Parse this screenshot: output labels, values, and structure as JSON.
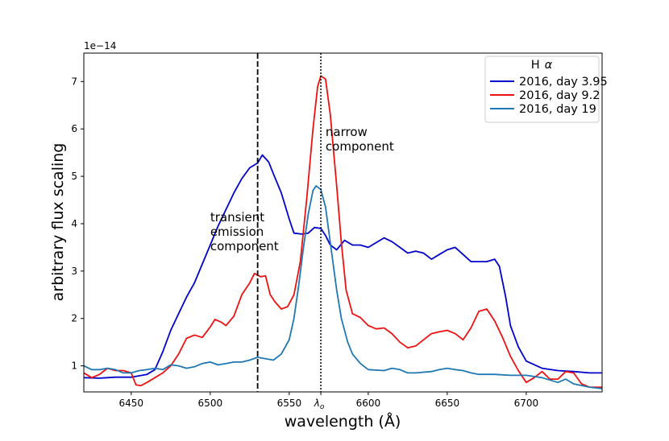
{
  "chart_data": {
    "type": "line",
    "title": "",
    "xlabel": "wavelength (Å)",
    "ylabel": "arbitrary flux scaling",
    "offset_text": "1e−14",
    "xlim": [
      6420,
      6748
    ],
    "ylim": [
      0.45,
      7.6
    ],
    "xticks": [
      6450,
      6500,
      6550,
      6600,
      6650,
      6700
    ],
    "extra_xtick": {
      "x": 6570,
      "label": "λ",
      "sub": "o"
    },
    "yticks": [
      1,
      2,
      3,
      4,
      5,
      6,
      7
    ],
    "legend": {
      "title": "Hα",
      "title_main": "H",
      "title_greek": "α",
      "placement": "top-right"
    },
    "vlines": [
      {
        "x": 6530,
        "style": "dashed",
        "name": "transient-line"
      },
      {
        "x": 6570,
        "style": "dotted",
        "name": "rest-wavelength-line"
      }
    ],
    "annotations": [
      {
        "lines": [
          "transient",
          "emission",
          "component"
        ],
        "x": 6500,
        "y": 4.05
      },
      {
        "lines": [
          "narrow",
          "component"
        ],
        "x": 6573,
        "y": 5.85
      }
    ],
    "series": [
      {
        "name": "2016, day 3.95",
        "color": "#0000cc",
        "points": [
          [
            6420,
            0.75
          ],
          [
            6430,
            0.74
          ],
          [
            6440,
            0.76
          ],
          [
            6450,
            0.76
          ],
          [
            6460,
            0.82
          ],
          [
            6465,
            0.92
          ],
          [
            6470,
            1.3
          ],
          [
            6475,
            1.75
          ],
          [
            6480,
            2.1
          ],
          [
            6485,
            2.45
          ],
          [
            6490,
            2.75
          ],
          [
            6495,
            3.15
          ],
          [
            6500,
            3.55
          ],
          [
            6505,
            3.95
          ],
          [
            6510,
            4.3
          ],
          [
            6515,
            4.65
          ],
          [
            6520,
            4.95
          ],
          [
            6525,
            5.18
          ],
          [
            6530,
            5.28
          ],
          [
            6533,
            5.45
          ],
          [
            6537,
            5.3
          ],
          [
            6540,
            5.05
          ],
          [
            6545,
            4.65
          ],
          [
            6550,
            4.1
          ],
          [
            6553,
            3.8
          ],
          [
            6558,
            3.78
          ],
          [
            6562,
            3.8
          ],
          [
            6566,
            3.92
          ],
          [
            6570,
            3.9
          ],
          [
            6573,
            3.75
          ],
          [
            6576,
            3.55
          ],
          [
            6580,
            3.45
          ],
          [
            6585,
            3.65
          ],
          [
            6590,
            3.55
          ],
          [
            6595,
            3.55
          ],
          [
            6600,
            3.5
          ],
          [
            6605,
            3.6
          ],
          [
            6610,
            3.7
          ],
          [
            6615,
            3.62
          ],
          [
            6620,
            3.5
          ],
          [
            6625,
            3.38
          ],
          [
            6630,
            3.42
          ],
          [
            6635,
            3.38
          ],
          [
            6640,
            3.25
          ],
          [
            6645,
            3.35
          ],
          [
            6650,
            3.45
          ],
          [
            6655,
            3.5
          ],
          [
            6660,
            3.35
          ],
          [
            6665,
            3.2
          ],
          [
            6670,
            3.2
          ],
          [
            6675,
            3.2
          ],
          [
            6680,
            3.25
          ],
          [
            6683,
            3.1
          ],
          [
            6687,
            2.45
          ],
          [
            6690,
            1.85
          ],
          [
            6695,
            1.4
          ],
          [
            6700,
            1.1
          ],
          [
            6710,
            0.95
          ],
          [
            6720,
            0.9
          ],
          [
            6730,
            0.88
          ],
          [
            6740,
            0.85
          ],
          [
            6748,
            0.85
          ]
        ]
      },
      {
        "name": "2016, day 9.2",
        "color": "#ee1111",
        "points": [
          [
            6420,
            0.85
          ],
          [
            6425,
            0.75
          ],
          [
            6430,
            0.82
          ],
          [
            6435,
            0.95
          ],
          [
            6440,
            0.9
          ],
          [
            6445,
            0.9
          ],
          [
            6450,
            0.85
          ],
          [
            6453,
            0.6
          ],
          [
            6456,
            0.58
          ],
          [
            6460,
            0.65
          ],
          [
            6465,
            0.75
          ],
          [
            6470,
            0.85
          ],
          [
            6475,
            1.0
          ],
          [
            6480,
            1.25
          ],
          [
            6485,
            1.58
          ],
          [
            6490,
            1.65
          ],
          [
            6495,
            1.6
          ],
          [
            6500,
            1.82
          ],
          [
            6503,
            1.98
          ],
          [
            6507,
            1.92
          ],
          [
            6510,
            1.85
          ],
          [
            6515,
            2.05
          ],
          [
            6520,
            2.5
          ],
          [
            6525,
            2.75
          ],
          [
            6528,
            2.95
          ],
          [
            6532,
            2.88
          ],
          [
            6535,
            2.9
          ],
          [
            6538,
            2.5
          ],
          [
            6541,
            2.35
          ],
          [
            6545,
            2.2
          ],
          [
            6549,
            2.25
          ],
          [
            6553,
            2.5
          ],
          [
            6557,
            3.2
          ],
          [
            6561,
            4.5
          ],
          [
            6565,
            6.0
          ],
          [
            6568,
            6.9
          ],
          [
            6570,
            7.12
          ],
          [
            6573,
            7.05
          ],
          [
            6576,
            6.3
          ],
          [
            6580,
            4.8
          ],
          [
            6583,
            3.6
          ],
          [
            6586,
            2.6
          ],
          [
            6590,
            2.1
          ],
          [
            6595,
            2.02
          ],
          [
            6600,
            1.85
          ],
          [
            6605,
            1.78
          ],
          [
            6610,
            1.8
          ],
          [
            6615,
            1.68
          ],
          [
            6620,
            1.5
          ],
          [
            6625,
            1.38
          ],
          [
            6630,
            1.42
          ],
          [
            6635,
            1.55
          ],
          [
            6640,
            1.68
          ],
          [
            6645,
            1.72
          ],
          [
            6650,
            1.75
          ],
          [
            6655,
            1.68
          ],
          [
            6660,
            1.55
          ],
          [
            6665,
            1.8
          ],
          [
            6670,
            2.15
          ],
          [
            6675,
            2.2
          ],
          [
            6680,
            1.95
          ],
          [
            6685,
            1.6
          ],
          [
            6690,
            1.2
          ],
          [
            6695,
            0.9
          ],
          [
            6700,
            0.65
          ],
          [
            6705,
            0.75
          ],
          [
            6710,
            0.88
          ],
          [
            6715,
            0.72
          ],
          [
            6720,
            0.72
          ],
          [
            6725,
            0.88
          ],
          [
            6730,
            0.85
          ],
          [
            6735,
            0.62
          ],
          [
            6740,
            0.55
          ],
          [
            6748,
            0.55
          ]
        ]
      },
      {
        "name": "2016, day 19",
        "color": "#1f77b4",
        "points": [
          [
            6420,
            1.0
          ],
          [
            6425,
            0.92
          ],
          [
            6430,
            0.92
          ],
          [
            6435,
            0.95
          ],
          [
            6440,
            0.92
          ],
          [
            6445,
            0.85
          ],
          [
            6450,
            0.85
          ],
          [
            6455,
            0.9
          ],
          [
            6460,
            0.92
          ],
          [
            6465,
            0.95
          ],
          [
            6470,
            0.92
          ],
          [
            6475,
            1.02
          ],
          [
            6480,
            1.0
          ],
          [
            6485,
            0.95
          ],
          [
            6490,
            0.98
          ],
          [
            6495,
            1.05
          ],
          [
            6500,
            1.08
          ],
          [
            6505,
            1.02
          ],
          [
            6510,
            1.05
          ],
          [
            6515,
            1.08
          ],
          [
            6520,
            1.08
          ],
          [
            6525,
            1.12
          ],
          [
            6530,
            1.18
          ],
          [
            6535,
            1.15
          ],
          [
            6540,
            1.12
          ],
          [
            6545,
            1.25
          ],
          [
            6550,
            1.55
          ],
          [
            6553,
            2.0
          ],
          [
            6556,
            2.7
          ],
          [
            6559,
            3.5
          ],
          [
            6562,
            4.2
          ],
          [
            6565,
            4.7
          ],
          [
            6567,
            4.8
          ],
          [
            6570,
            4.72
          ],
          [
            6573,
            4.35
          ],
          [
            6576,
            3.6
          ],
          [
            6580,
            2.6
          ],
          [
            6583,
            2.0
          ],
          [
            6587,
            1.5
          ],
          [
            6590,
            1.25
          ],
          [
            6595,
            1.05
          ],
          [
            6600,
            0.92
          ],
          [
            6610,
            0.9
          ],
          [
            6615,
            0.95
          ],
          [
            6620,
            0.92
          ],
          [
            6625,
            0.85
          ],
          [
            6630,
            0.85
          ],
          [
            6640,
            0.88
          ],
          [
            6645,
            0.92
          ],
          [
            6650,
            0.95
          ],
          [
            6655,
            0.92
          ],
          [
            6660,
            0.9
          ],
          [
            6665,
            0.85
          ],
          [
            6670,
            0.82
          ],
          [
            6680,
            0.82
          ],
          [
            6690,
            0.8
          ],
          [
            6700,
            0.8
          ],
          [
            6710,
            0.75
          ],
          [
            6720,
            0.65
          ],
          [
            6725,
            0.72
          ],
          [
            6730,
            0.62
          ],
          [
            6740,
            0.55
          ],
          [
            6748,
            0.52
          ]
        ]
      }
    ]
  }
}
